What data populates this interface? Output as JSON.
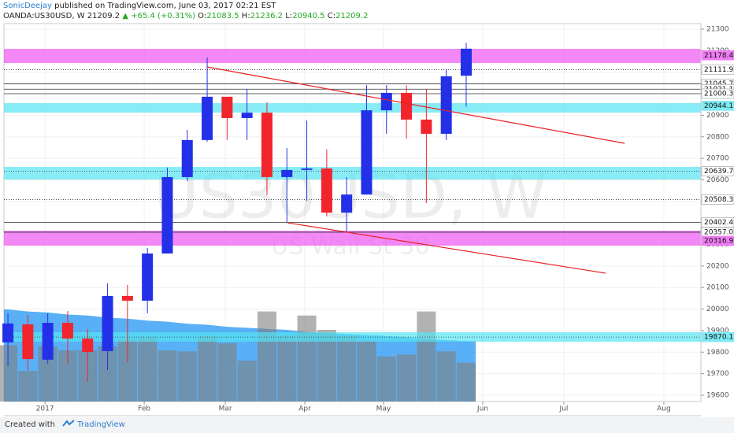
{
  "header": {
    "author": "SonicDeejay",
    "published": "published on TradingView.com, June 03, 2017 02:21 EST",
    "symbol": "OANDA:US30USD, W",
    "change": "▲ +65.4 (+0.31%)",
    "ohlc_labels": [
      "O:",
      "H:",
      "L:",
      "C:"
    ]
  },
  "chart_data": {
    "type": "candlestick",
    "watermark": "US30USD, W",
    "watermark_subtitle": "US Wall St 30",
    "up_color": "#2330e8",
    "down_color": "#f2242c",
    "x": [
      0,
      1,
      2,
      3,
      4,
      5,
      6,
      7,
      8,
      9,
      10,
      11,
      12,
      13,
      14,
      15,
      16,
      17,
      18,
      19,
      20,
      21,
      22,
      23
    ],
    "open": [
      19845,
      19929,
      19765,
      19936,
      19863,
      19805,
      20061,
      20039,
      20258,
      20613,
      20785,
      20986,
      20887,
      20912,
      20613,
      20646,
      20653,
      20448,
      20532,
      20923,
      21004,
      20880,
      20814,
      21083.5
    ],
    "high": [
      19980,
      19973,
      19980,
      19991,
      19907,
      20119,
      20112,
      20284,
      20657,
      20832,
      21168,
      20986,
      21022,
      20960,
      20748,
      20876,
      20741,
      20613,
      21040,
      21040,
      21040,
      21022,
      21114,
      21236.2
    ],
    "low": [
      19735,
      19717,
      19746,
      19746,
      19662,
      19717,
      19754,
      19980,
      20258,
      20594,
      20777,
      20785,
      20785,
      20529,
      20404,
      20503,
      20430,
      20357,
      20532,
      20814,
      20792,
      20492,
      20785,
      20940.5
    ],
    "close": [
      19933,
      19768,
      19936,
      19863,
      19801,
      20061,
      20039,
      20258,
      20613,
      20785,
      20986,
      20887,
      20912,
      20613,
      20646,
      20653,
      20448,
      20532,
      20923,
      21004,
      20880,
      20814,
      21081,
      21209.2
    ],
    "volume": {
      "axis": "y2",
      "color": "#7f7f7f",
      "values": [
        55,
        30,
        54,
        50,
        50,
        54,
        61,
        63,
        50,
        49,
        64,
        57,
        40,
        88,
        64,
        84,
        70,
        64,
        59,
        44,
        46,
        88,
        49,
        38
      ]
    },
    "volume_ma": {
      "axis": "y2",
      "color": "#2196f3",
      "values": [
        90,
        88,
        87,
        85,
        84,
        82,
        81,
        79,
        78,
        76,
        75,
        73,
        72,
        71,
        70,
        68,
        67,
        66,
        65,
        64,
        63,
        61,
        60,
        59
      ]
    },
    "ylim": [
      19570.7,
      21325.6
    ],
    "y2lim": [
      0,
      100
    ],
    "yticks": [
      19600,
      19700,
      19800,
      19900,
      20000,
      20100,
      20200,
      20300,
      20400,
      20500,
      20600,
      20700,
      20800,
      20900,
      21000,
      21100,
      21200,
      21300
    ],
    "xlim": [
      -0.2,
      34.78
    ],
    "xticks": [
      {
        "value": 1.86,
        "label": "2017"
      },
      {
        "value": 6.84,
        "label": "Feb"
      },
      {
        "value": 10.91,
        "label": "Mar"
      },
      {
        "value": 14.9,
        "label": "Apr"
      },
      {
        "value": 18.85,
        "label": "May"
      },
      {
        "value": 23.83,
        "label": "Jun"
      },
      {
        "value": 27.9,
        "label": "Jul"
      },
      {
        "value": 32.92,
        "label": "Aug"
      }
    ],
    "grid": true,
    "zones": [
      {
        "from": 21142.8,
        "to": 21208.6,
        "color": "#ee55f2"
      },
      {
        "from": 20912.4,
        "to": 20956.3,
        "color": "#55e4f2"
      },
      {
        "from": 20601.6,
        "to": 20660.1,
        "color": "#55e4f2"
      },
      {
        "from": 20294.5,
        "to": 20364,
        "color": "#ee55f2"
      },
      {
        "from": 19848.4,
        "to": 19892.3,
        "color": "#55e4f2"
      }
    ],
    "levels": [
      {
        "value": 21178.4,
        "line": "none",
        "tag": "#f07cf4"
      },
      {
        "value": 21111.9,
        "line": "dotted",
        "tag": "#ffffff"
      },
      {
        "value": 21045.7,
        "line": "solid",
        "tag": "#ffffff"
      },
      {
        "value": 21021.1,
        "line": "solid",
        "tag": "#ffffff"
      },
      {
        "value": 21000.3,
        "line": "solid",
        "tag": "#ffffff"
      },
      {
        "value": 20944.1,
        "line": "none",
        "tag": "#7eeaf4"
      },
      {
        "value": 20639.7,
        "line": "dotted",
        "tag": "#ffffff"
      },
      {
        "value": 20508.3,
        "line": "dotted",
        "tag": "#ffffff"
      },
      {
        "value": 20402.4,
        "line": "solid",
        "tag": "#ffffff"
      },
      {
        "value": 20357,
        "label": "20357.0",
        "line": "solid",
        "tag": "#ffffff"
      },
      {
        "value": 20316.9,
        "line": "none",
        "tag": "#f07cf4"
      },
      {
        "value": 19870.1,
        "line": "dotted",
        "tag": "#7eeaf4"
      }
    ],
    "trendlines": [
      {
        "color": "#e82020",
        "x": [
          10,
          30.95
        ],
        "y": [
          21124.5,
          20769.8
        ]
      },
      {
        "color": "#e82020",
        "x": [
          14.04,
          30
        ],
        "y": [
          20400.5,
          20166.5
        ]
      }
    ]
  },
  "footer": {
    "created_with": "Created with",
    "brand": "TradingView"
  }
}
